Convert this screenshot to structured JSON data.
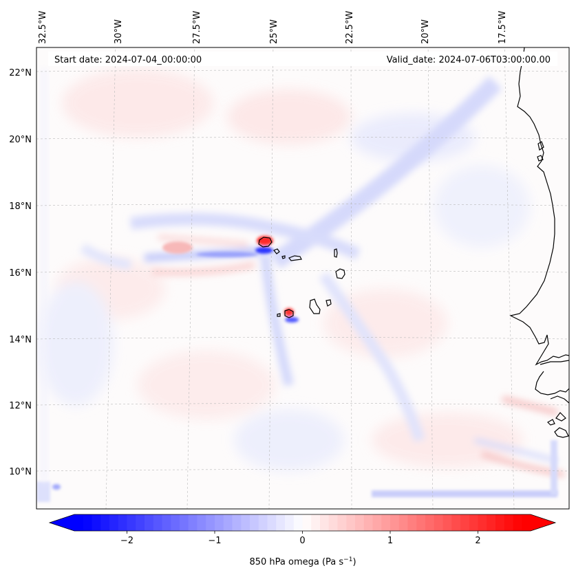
{
  "header": {
    "start_date": "Start date: 2024-07-04_00:00:00",
    "valid_date": "Valid_date: 2024-07-06T03:00:00.00"
  },
  "axes": {
    "lon_labels": [
      "32.5°W",
      "30°W",
      "27.5°W",
      "25°W",
      "22.5°W",
      "20°W",
      "17.5°W"
    ],
    "lat_labels": [
      "22°N",
      "20°N",
      "18°N",
      "16°N",
      "14°N",
      "12°N",
      "10°N"
    ]
  },
  "colorbar": {
    "label": "850 hPa omega (Pa s",
    "label_sup": "−1",
    "label_end": ")",
    "ticks": [
      "−2",
      "−1",
      "0",
      "1",
      "2"
    ],
    "tick_values": [
      -2,
      -1,
      0,
      1,
      2
    ],
    "range": [
      -2.6,
      2.6
    ],
    "neg_color": "#0000ff",
    "mid_color": "#ffffff",
    "pos_color": "#ff0000"
  },
  "chart_data": {
    "type": "heatmap",
    "variable": "850 hPa omega",
    "units": "Pa s^-1",
    "lon_range": [
      -33,
      -16.5
    ],
    "lat_range": [
      9,
      22.8
    ],
    "value_range": [
      -2.6,
      2.6
    ]
  }
}
